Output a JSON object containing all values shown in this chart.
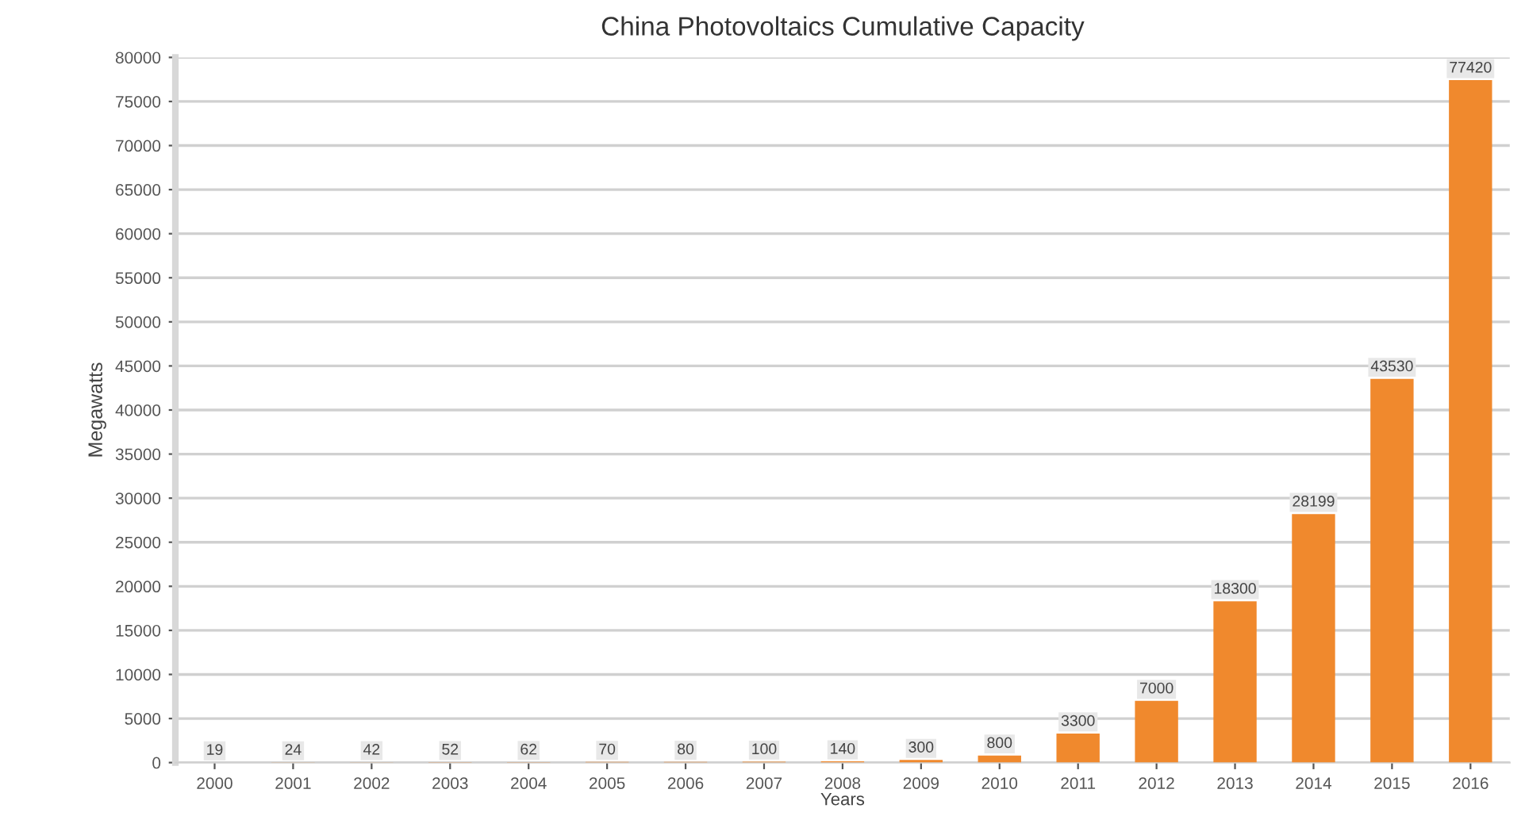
{
  "chart_data": {
    "type": "bar",
    "title": "China Photovoltaics Cumulative Capacity",
    "xlabel": "Years",
    "ylabel": "Megawatts",
    "categories": [
      "2000",
      "2001",
      "2002",
      "2003",
      "2004",
      "2005",
      "2006",
      "2007",
      "2008",
      "2009",
      "2010",
      "2011",
      "2012",
      "2013",
      "2014",
      "2015",
      "2016"
    ],
    "values": [
      19,
      24,
      42,
      52,
      62,
      70,
      80,
      100,
      140,
      300,
      800,
      3300,
      7000,
      18300,
      28199,
      43530,
      77420
    ],
    "color": "#f0892d",
    "data_labels": true,
    "grid": "y",
    "ylim": [
      0,
      80000
    ],
    "yticks": [
      0,
      5000,
      10000,
      15000,
      20000,
      25000,
      30000,
      35000,
      40000,
      45000,
      50000,
      55000,
      60000,
      65000,
      70000,
      75000,
      80000
    ]
  }
}
